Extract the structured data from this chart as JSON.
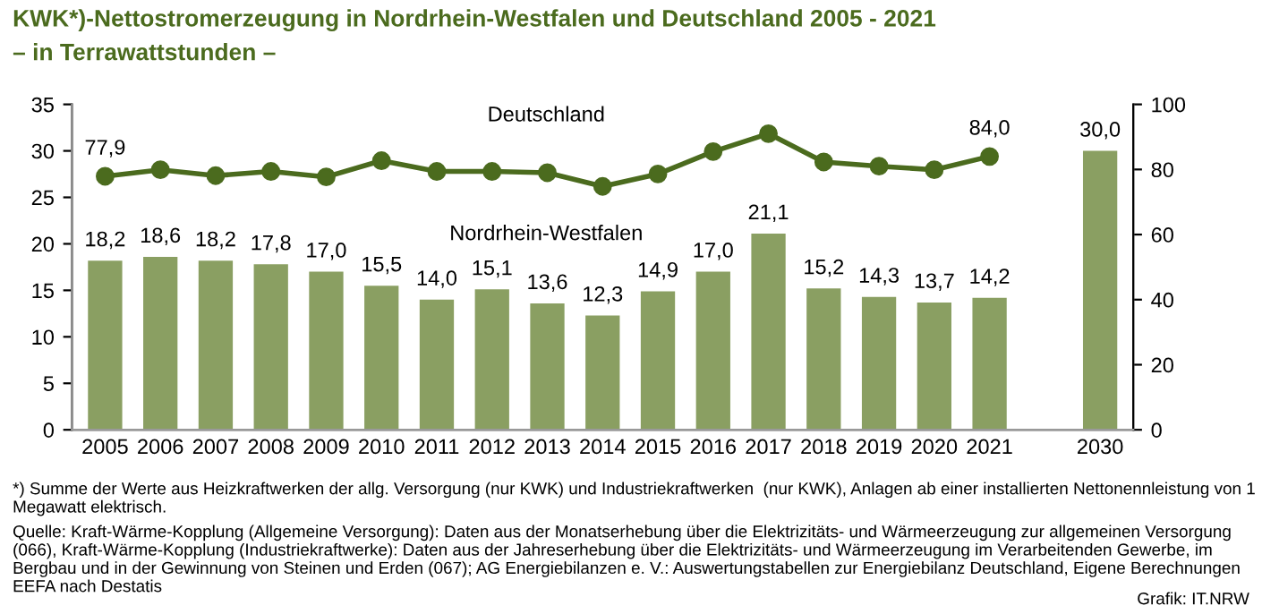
{
  "chart_data": {
    "type": "bar",
    "title": "KWK*)-Nettostromerzeugung in Nordrhein-Westfalen und Deutschland 2005 - 2021",
    "subtitle": "– in Terrawattstunden –",
    "categories": [
      "2005",
      "2006",
      "2007",
      "2008",
      "2009",
      "2010",
      "2011",
      "2012",
      "2013",
      "2014",
      "2015",
      "2016",
      "2017",
      "2018",
      "2019",
      "2020",
      "2021",
      null,
      "2030"
    ],
    "series": [
      {
        "name": "Nordrhein-Westfalen",
        "color": "#8a9f62",
        "data_labels": true,
        "values": [
          18.2,
          18.6,
          18.2,
          17.8,
          17.0,
          15.5,
          14.0,
          15.1,
          13.6,
          12.3,
          14.9,
          17.0,
          21.1,
          15.2,
          14.3,
          13.7,
          14.2,
          null,
          30.0
        ],
        "value_labels": [
          "18,2",
          "18,6",
          "18,2",
          "17,8",
          "17,0",
          "15,5",
          "14,0",
          "15,1",
          "13,6",
          "12,3",
          "14,9",
          "17,0",
          "21,1",
          "15,2",
          "14,3",
          "13,7",
          "14,2",
          null,
          "30,0"
        ]
      },
      {
        "name": "Deutschland",
        "type": "line",
        "axis": "y2",
        "color": "#4b6b1e",
        "marker": "circle",
        "values": [
          77.9,
          79.9,
          78.1,
          79.4,
          77.7,
          82.7,
          79.4,
          79.4,
          79.0,
          74.8,
          78.6,
          85.5,
          91.0,
          82.3,
          81.0,
          79.9,
          84.0,
          null,
          null
        ],
        "value_labels": [
          "77,9",
          null,
          null,
          null,
          null,
          null,
          null,
          null,
          null,
          null,
          null,
          null,
          null,
          null,
          null,
          null,
          "84,0",
          null,
          null
        ]
      }
    ],
    "ylim": [
      0,
      35
    ],
    "yticks": [
      0,
      5,
      10,
      15,
      20,
      25,
      30,
      35
    ],
    "y2lim": [
      0,
      100
    ],
    "y2ticks": [
      0,
      20,
      40,
      60,
      80,
      100
    ],
    "grid": false,
    "legend": false,
    "annotations": [
      "*) Summe der Werte aus Heizkraftwerken der allg. Versorgung (nur KWK) und Industriekraftwerken  (nur KWK), Anlagen ab einer installierten Nettonennleistung von 1 Megawatt elektrisch.",
      "Quelle: Kraft-Wärme-Kopplung (Allgemeine Versorgung): Daten aus der Monatserhebung über die Elektrizitäts- und Wärmeerzeugung zur allgemeinen Versorgung (066), Kraft-Wärme-Kopplung (Industriekraftwerke): Daten aus der Jahreserhebung über die Elektrizitäts- und Wärmeerzeugung im Verarbeitenden Gewerbe, im Bergbau und in der Gewinnung von Steinen und Erden (067); AG Energiebilanzen e. V.: Auswertungstabellen zur Energiebilanz Deutschland, Eigene Berechnungen EEFA nach Destatis",
      "Grafik: IT.NRW"
    ]
  }
}
